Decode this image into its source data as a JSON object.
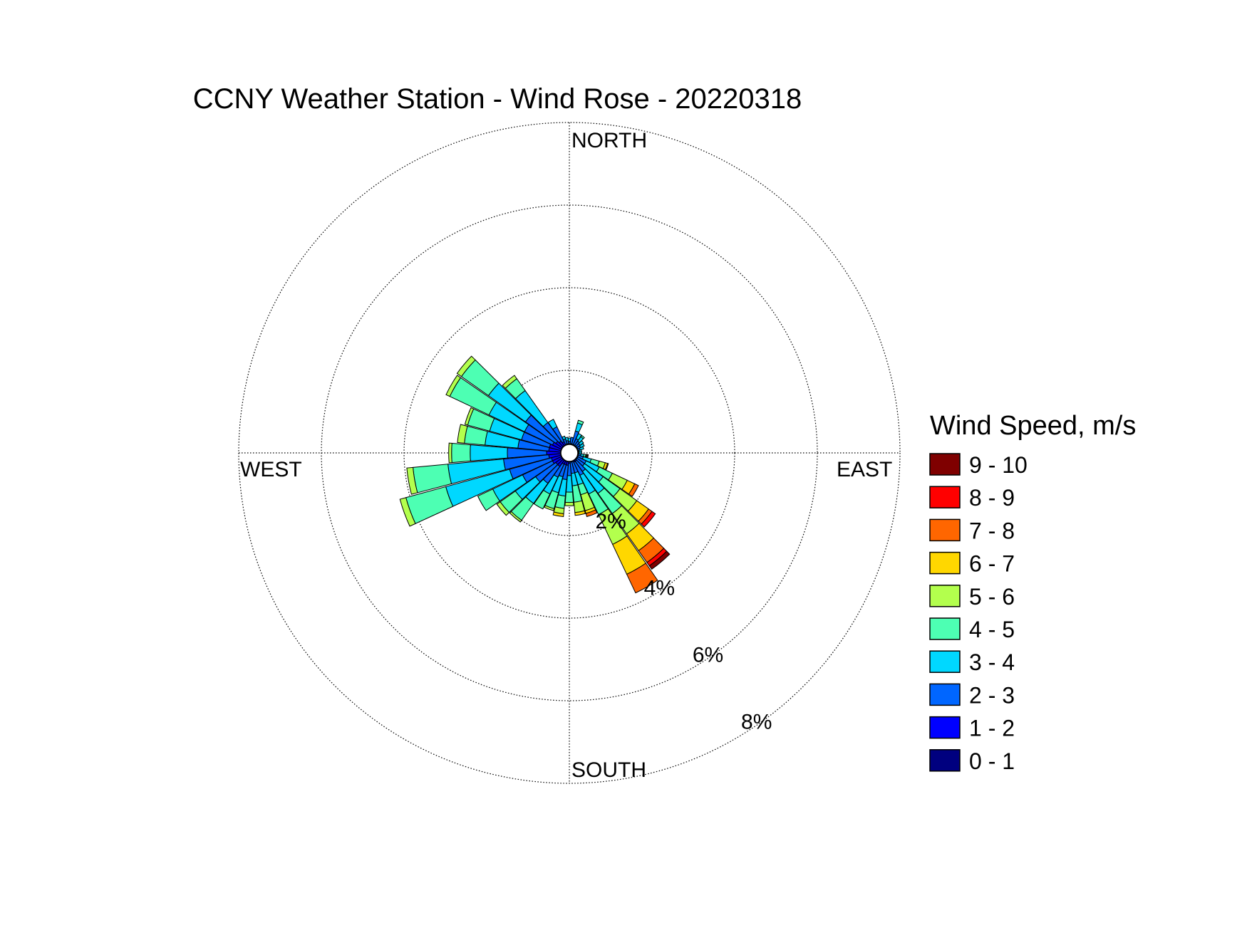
{
  "chart_data": {
    "type": "wind_rose",
    "title": "CCNY Weather Station - Wind Rose - 20220318",
    "direction_labels": {
      "north": "NORTH",
      "east": "EAST",
      "south": "SOUTH",
      "west": "WEST"
    },
    "radial_ticks": [
      {
        "value": 2,
        "label": "2%"
      },
      {
        "value": 4,
        "label": "4%"
      },
      {
        "value": 6,
        "label": "6%"
      },
      {
        "value": 8,
        "label": "8%"
      }
    ],
    "radial_max": 8,
    "sector_width_deg": 10,
    "legend_title": "Wind Speed, m/s",
    "speed_bins": [
      {
        "label": "0 - 1",
        "color": "#00007f"
      },
      {
        "label": "1 - 2",
        "color": "#0000ff"
      },
      {
        "label": "2 - 3",
        "color": "#0066ff"
      },
      {
        "label": "3 - 4",
        "color": "#00d8ff"
      },
      {
        "label": "4 - 5",
        "color": "#4dffb3"
      },
      {
        "label": "5 - 6",
        "color": "#b3ff4d"
      },
      {
        "label": "6 - 7",
        "color": "#ffd700"
      },
      {
        "label": "7 - 8",
        "color": "#ff6600"
      },
      {
        "label": "8 - 9",
        "color": "#ff0000"
      },
      {
        "label": "9 - 10",
        "color": "#7f0000"
      }
    ],
    "legend_order": [
      "9 - 10",
      "8 - 9",
      "7 - 8",
      "6 - 7",
      "5 - 6",
      "4 - 5",
      "3 - 4",
      "2 - 3",
      "1 - 2",
      "0 - 1"
    ],
    "sectors": [
      {
        "direction": 10,
        "cumulative": [
          0.08,
          0.2,
          0.38
        ]
      },
      {
        "direction": 20,
        "cumulative": [
          0.08,
          0.22,
          0.55,
          0.75,
          0.82
        ]
      },
      {
        "direction": 30,
        "cumulative": [
          0.08,
          0.2,
          0.38,
          0.52
        ]
      },
      {
        "direction": 40,
        "cumulative": [
          0.08,
          0.18,
          0.35,
          0.48,
          0.52
        ]
      },
      {
        "direction": 50,
        "cumulative": [
          0.08,
          0.16,
          0.32,
          0.42
        ]
      },
      {
        "direction": 60,
        "cumulative": [
          0.08,
          0.16,
          0.3,
          0.4
        ]
      },
      {
        "direction": 70,
        "cumulative": [
          0.08,
          0.15,
          0.27,
          0.36
        ]
      },
      {
        "direction": 80,
        "cumulative": [
          0.08,
          0.14,
          0.24,
          0.3
        ]
      },
      {
        "direction": 90,
        "cumulative": [
          0.08,
          0.14,
          0.22,
          0.3
        ]
      },
      {
        "direction": 100,
        "cumulative": [
          0.08,
          0.16,
          0.28,
          0.35,
          0.4,
          0.42,
          0.44,
          0.46
        ]
      },
      {
        "direction": 110,
        "cumulative": [
          0.08,
          0.18,
          0.35,
          0.55,
          0.75,
          0.9,
          0.96,
          0.98
        ]
      },
      {
        "direction": 120,
        "cumulative": [
          0.08,
          0.22,
          0.45,
          0.8,
          1.15,
          1.55,
          1.75,
          1.85
        ]
      },
      {
        "direction": 130,
        "cumulative": [
          0.08,
          0.22,
          0.45,
          1.0,
          1.5,
          2.0,
          2.35,
          2.45,
          2.55
        ]
      },
      {
        "direction": 140,
        "cumulative": [
          0.08,
          0.25,
          0.55,
          1.2,
          1.8,
          2.4,
          2.9,
          3.25,
          3.35,
          3.45
        ]
      },
      {
        "direction": 150,
        "cumulative": [
          0.08,
          0.25,
          0.6,
          1.1,
          1.65,
          2.45,
          3.25,
          3.75
        ]
      },
      {
        "direction": 160,
        "cumulative": [
          0.08,
          0.22,
          0.5,
          0.8,
          1.05,
          1.45,
          1.52,
          1.6
        ]
      },
      {
        "direction": 170,
        "cumulative": [
          0.08,
          0.22,
          0.5,
          0.8,
          1.2,
          1.45,
          1.52
        ]
      },
      {
        "direction": 180,
        "cumulative": [
          0.08,
          0.25,
          0.55,
          0.95,
          1.2,
          1.28
        ]
      },
      {
        "direction": 190,
        "cumulative": [
          0.08,
          0.3,
          0.65,
          1.05,
          1.35,
          1.48,
          1.55
        ]
      },
      {
        "direction": 200,
        "cumulative": [
          0.08,
          0.3,
          0.6,
          1.0,
          1.4,
          1.45
        ]
      },
      {
        "direction": 210,
        "cumulative": [
          0.08,
          0.3,
          0.65,
          1.1,
          1.5
        ]
      },
      {
        "direction": 220,
        "cumulative": [
          0.08,
          0.4,
          0.9,
          1.5,
          2.0,
          2.05
        ]
      },
      {
        "direction": 230,
        "cumulative": [
          0.08,
          0.4,
          1.0,
          1.6,
          2.05,
          2.15
        ]
      },
      {
        "direction": 240,
        "cumulative": [
          0.08,
          0.45,
          1.25,
          2.05,
          2.45
        ]
      },
      {
        "direction": 250,
        "cumulative": [
          0.08,
          0.45,
          1.5,
          3.1,
          4.1,
          4.25
        ]
      },
      {
        "direction": 260,
        "cumulative": [
          0.08,
          0.5,
          1.6,
          2.95,
          3.8,
          3.95
        ]
      },
      {
        "direction": 270,
        "cumulative": [
          0.08,
          0.55,
          1.5,
          2.4,
          2.85,
          2.92
        ]
      },
      {
        "direction": 280,
        "cumulative": [
          0.08,
          0.5,
          1.25,
          2.05,
          2.55,
          2.72
        ]
      },
      {
        "direction": 290,
        "cumulative": [
          0.08,
          0.5,
          1.2,
          2.0,
          2.55,
          2.62
        ]
      },
      {
        "direction": 300,
        "cumulative": [
          0.08,
          0.45,
          1.2,
          2.15,
          3.2,
          3.3
        ]
      },
      {
        "direction": 310,
        "cumulative": [
          0.08,
          0.4,
          1.3,
          2.4,
          3.2,
          3.33
        ]
      },
      {
        "direction": 320,
        "cumulative": [
          0.08,
          0.35,
          0.9,
          1.85,
          2.2,
          2.3
        ]
      },
      {
        "direction": 330,
        "cumulative": [
          0.08,
          0.3,
          0.7,
          0.9
        ]
      },
      {
        "direction": 340,
        "cumulative": [
          0.08,
          0.2,
          0.35,
          0.42
        ]
      },
      {
        "direction": 350,
        "cumulative": [
          0.08,
          0.16,
          0.3,
          0.38
        ]
      },
      {
        "direction": 0,
        "cumulative": [
          0.08,
          0.16,
          0.28,
          0.36
        ]
      }
    ]
  }
}
